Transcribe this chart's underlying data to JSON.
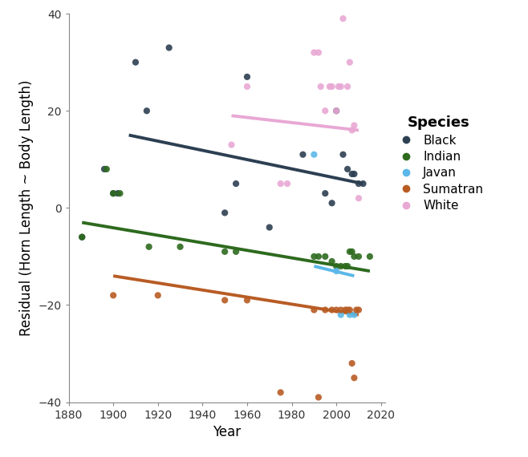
{
  "title": "",
  "xlabel": "Year",
  "ylabel": "Residual (Horn Length ~ Body Length)",
  "xlim": [
    1882,
    2022
  ],
  "ylim": [
    -40,
    40
  ],
  "xticks": [
    1880,
    1900,
    1920,
    1940,
    1960,
    1980,
    2000,
    2020
  ],
  "yticks": [
    -40,
    -20,
    0,
    20,
    40
  ],
  "species": {
    "Black": {
      "color": "#2d3f52",
      "points": [
        [
          1886,
          -6
        ],
        [
          1896,
          8
        ],
        [
          1900,
          3
        ],
        [
          1902,
          3
        ],
        [
          1910,
          30
        ],
        [
          1915,
          20
        ],
        [
          1925,
          33
        ],
        [
          1950,
          -1
        ],
        [
          1955,
          5
        ],
        [
          1960,
          27
        ],
        [
          1970,
          -4
        ],
        [
          1985,
          11
        ],
        [
          1995,
          3
        ],
        [
          1998,
          1
        ],
        [
          2000,
          20
        ],
        [
          2003,
          11
        ],
        [
          2005,
          8
        ],
        [
          2007,
          7
        ],
        [
          2008,
          7
        ],
        [
          2010,
          5
        ],
        [
          2012,
          5
        ]
      ],
      "trend_x": [
        1907,
        2012
      ],
      "trend_y": [
        15,
        5
      ]
    },
    "Indian": {
      "color": "#2d6a1e",
      "points": [
        [
          1886,
          -6
        ],
        [
          1897,
          8
        ],
        [
          1900,
          3
        ],
        [
          1903,
          3
        ],
        [
          1916,
          -8
        ],
        [
          1930,
          -8
        ],
        [
          1950,
          -9
        ],
        [
          1955,
          -9
        ],
        [
          1990,
          -10
        ],
        [
          1992,
          -10
        ],
        [
          1995,
          -10
        ],
        [
          1998,
          -11
        ],
        [
          2000,
          -12
        ],
        [
          2002,
          -12
        ],
        [
          2004,
          -12
        ],
        [
          2005,
          -12
        ],
        [
          2006,
          -9
        ],
        [
          2007,
          -9
        ],
        [
          2008,
          -10
        ],
        [
          2010,
          -10
        ],
        [
          2015,
          -10
        ]
      ],
      "trend_x": [
        1886,
        2015
      ],
      "trend_y": [
        -3,
        -13
      ]
    },
    "Javan": {
      "color": "#5bb8e8",
      "points": [
        [
          1990,
          11
        ],
        [
          2000,
          -13
        ],
        [
          2002,
          -22
        ],
        [
          2006,
          -22
        ],
        [
          2008,
          -22
        ]
      ],
      "trend_x": [
        1990,
        2008
      ],
      "trend_y": [
        -12,
        -14
      ]
    },
    "Sumatran": {
      "color": "#b85c24",
      "points": [
        [
          1900,
          -18
        ],
        [
          1920,
          -18
        ],
        [
          1950,
          -19
        ],
        [
          1960,
          -19
        ],
        [
          1975,
          -38
        ],
        [
          1990,
          -21
        ],
        [
          1992,
          -39
        ],
        [
          1995,
          -21
        ],
        [
          1998,
          -21
        ],
        [
          2000,
          -21
        ],
        [
          2002,
          -21
        ],
        [
          2004,
          -21
        ],
        [
          2005,
          -21
        ],
        [
          2006,
          -21
        ],
        [
          2007,
          -32
        ],
        [
          2008,
          -35
        ],
        [
          2009,
          -21
        ],
        [
          2010,
          -21
        ]
      ],
      "trend_x": [
        1900,
        2010
      ],
      "trend_y": [
        -14,
        -22
      ]
    },
    "White": {
      "color": "#e8a8d4",
      "points": [
        [
          1953,
          13
        ],
        [
          1960,
          25
        ],
        [
          1975,
          5
        ],
        [
          1978,
          5
        ],
        [
          1990,
          32
        ],
        [
          1992,
          32
        ],
        [
          1993,
          25
        ],
        [
          1995,
          20
        ],
        [
          1997,
          25
        ],
        [
          1998,
          25
        ],
        [
          2000,
          20
        ],
        [
          2001,
          25
        ],
        [
          2002,
          25
        ],
        [
          2003,
          39
        ],
        [
          2005,
          25
        ],
        [
          2006,
          30
        ],
        [
          2007,
          16
        ],
        [
          2008,
          17
        ],
        [
          2010,
          2
        ]
      ],
      "trend_x": [
        1953,
        2010
      ],
      "trend_y": [
        19,
        16
      ]
    }
  },
  "background_color": "#ffffff",
  "legend_title": "Species",
  "legend_title_fontsize": 13,
  "legend_fontsize": 11,
  "axis_label_fontsize": 12,
  "tick_fontsize": 10,
  "point_size": 35,
  "line_width": 2.8
}
